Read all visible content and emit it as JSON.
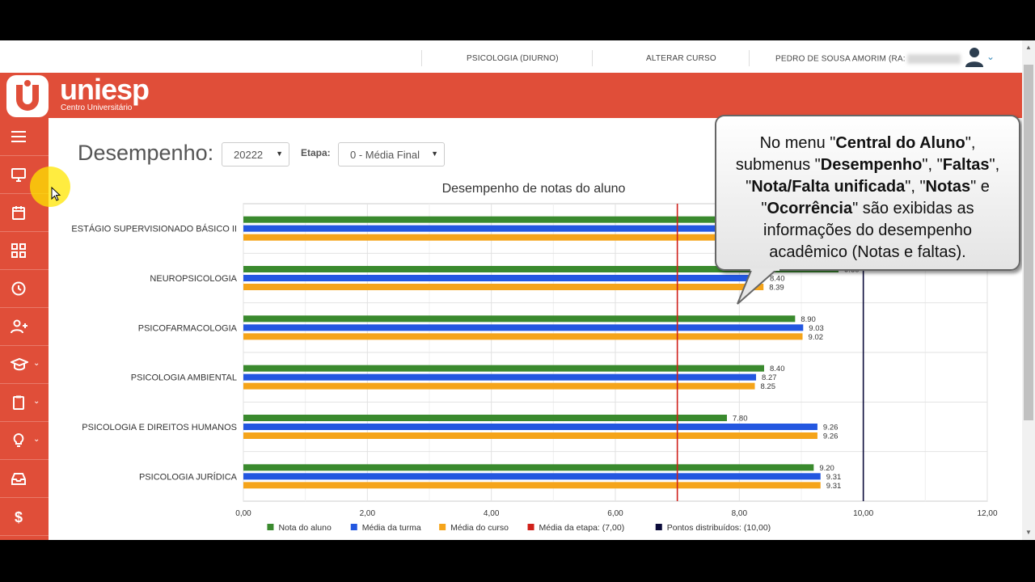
{
  "topbar": {
    "course": "PSICOLOGIA (DIURNO)",
    "change_course": "ALTERAR CURSO",
    "user": "PEDRO DE SOUSA AMORIM (RA:"
  },
  "brand": {
    "name": "uniesp",
    "subtitle": "Centro Universitário"
  },
  "sidebar": {
    "items": [
      {
        "icon": "menu-icon"
      },
      {
        "icon": "monitor-icon"
      },
      {
        "icon": "calendar-icon"
      },
      {
        "icon": "grid-icon"
      },
      {
        "icon": "clock-icon"
      },
      {
        "icon": "user-plus-icon"
      },
      {
        "icon": "graduation-cap-icon"
      },
      {
        "icon": "clipboard-icon"
      },
      {
        "icon": "lightbulb-icon"
      },
      {
        "icon": "inbox-icon"
      },
      {
        "icon": "dollar-icon"
      }
    ]
  },
  "page": {
    "title": "Desempenho:",
    "period_value": "20222",
    "stage_label": "Etapa:",
    "stage_value": "0 - Média Final"
  },
  "chart_data": {
    "type": "bar",
    "orientation": "horizontal",
    "title": "Desempenho de notas do aluno",
    "categories": [
      "ESTÁGIO SUPERVISIONADO BÁSICO II",
      "NEUROPSICOLOGIA",
      "PSICOFARMACOLOGIA",
      "PSICOLOGIA AMBIENTAL",
      "PSICOLOGIA E DIREITOS HUMANOS",
      "PSICOLOGIA JURÍDICA"
    ],
    "series": [
      {
        "name": "Nota do aluno",
        "color": "#3a8a2e",
        "values": [
          10.0,
          9.6,
          8.9,
          8.4,
          7.8,
          9.2
        ],
        "labels": [
          null,
          "9.60",
          "8.90",
          "8.40",
          "7.80",
          "9.20"
        ]
      },
      {
        "name": "Média da turma",
        "color": "#2357e0",
        "values": [
          10.0,
          8.4,
          9.03,
          8.27,
          9.26,
          9.31
        ],
        "labels": [
          null,
          "8.40",
          "9.03",
          "8.27",
          "9.26",
          "9.31"
        ]
      },
      {
        "name": "Média do curso",
        "color": "#f5a41a",
        "values": [
          10.0,
          8.39,
          9.02,
          8.25,
          9.26,
          9.31
        ],
        "labels": [
          null,
          "8.39",
          "9.02",
          "8.25",
          "9.26",
          "9.31"
        ]
      }
    ],
    "reference_lines": [
      {
        "name": "Média da etapa: (7,00)",
        "value": 7.0,
        "color": "#d0201a"
      },
      {
        "name": "Pontos distribuídos: (10,00)",
        "value": 10.0,
        "color": "#0b0b3a"
      }
    ],
    "xlim": [
      0,
      12
    ],
    "xticks": [
      "0,00",
      "2,00",
      "4,00",
      "6,00",
      "8,00",
      "10,00",
      "12,00"
    ],
    "grid": true,
    "legend": "bottom"
  },
  "callout": {
    "parts": [
      {
        "t": "No menu \"",
        "b": false
      },
      {
        "t": "Central do Aluno",
        "b": true
      },
      {
        "t": "\", submenus \"",
        "b": false
      },
      {
        "t": "Desempenho",
        "b": true
      },
      {
        "t": "\", \"",
        "b": false
      },
      {
        "t": "Faltas",
        "b": true
      },
      {
        "t": "\", \"",
        "b": false
      },
      {
        "t": "Nota/Falta unificada",
        "b": true
      },
      {
        "t": "\", \"",
        "b": false
      },
      {
        "t": "Notas",
        "b": true
      },
      {
        "t": "\" e \"",
        "b": false
      },
      {
        "t": "Ocorrência",
        "b": true
      },
      {
        "t": "\" são exibidas as informações do desempenho acadêmico (Notas e faltas).",
        "b": false
      }
    ]
  }
}
